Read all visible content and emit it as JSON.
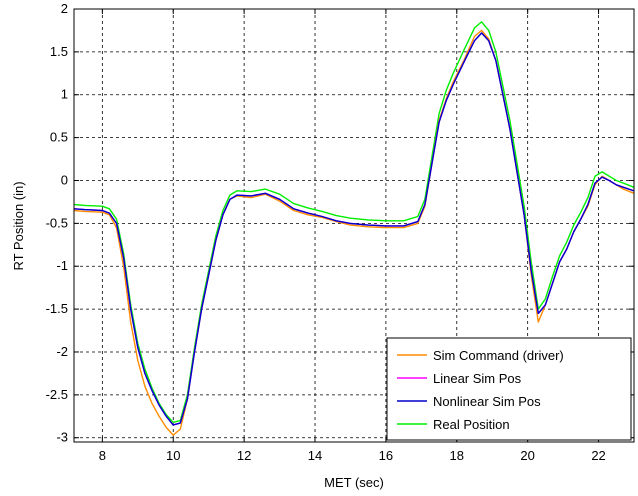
{
  "chart_data": {
    "type": "line",
    "xlabel": "MET (sec)",
    "ylabel": "RT Position (in)",
    "xlim": [
      7.2,
      23
    ],
    "ylim": [
      -3.05,
      2
    ],
    "x_ticks": [
      "8",
      "10",
      "12",
      "14",
      "16",
      "18",
      "20",
      "22"
    ],
    "y_ticks": [
      "2",
      "1.5",
      "1",
      "0.5",
      "0",
      "-0.5",
      "-1",
      "-1.5",
      "-2",
      "-2.5",
      "-3"
    ],
    "grid": true,
    "grid_style": "dashed",
    "legend_position": "bottom-right",
    "series": [
      {
        "name": "Sim Command (driver)",
        "color": "#ff8c00",
        "points": [
          [
            7.2,
            -0.35
          ],
          [
            7.5,
            -0.36
          ],
          [
            8.0,
            -0.37
          ],
          [
            8.2,
            -0.4
          ],
          [
            8.4,
            -0.55
          ],
          [
            8.6,
            -1.0
          ],
          [
            8.8,
            -1.65
          ],
          [
            9.0,
            -2.1
          ],
          [
            9.2,
            -2.4
          ],
          [
            9.4,
            -2.6
          ],
          [
            9.6,
            -2.75
          ],
          [
            9.8,
            -2.88
          ],
          [
            10.0,
            -2.97
          ],
          [
            10.2,
            -2.9
          ],
          [
            10.4,
            -2.55
          ],
          [
            10.6,
            -2.0
          ],
          [
            10.8,
            -1.5
          ],
          [
            11.0,
            -1.1
          ],
          [
            11.2,
            -0.7
          ],
          [
            11.4,
            -0.4
          ],
          [
            11.6,
            -0.22
          ],
          [
            11.8,
            -0.18
          ],
          [
            12.2,
            -0.2
          ],
          [
            12.6,
            -0.16
          ],
          [
            13.0,
            -0.24
          ],
          [
            13.4,
            -0.35
          ],
          [
            13.8,
            -0.4
          ],
          [
            14.2,
            -0.43
          ],
          [
            14.6,
            -0.48
          ],
          [
            15.0,
            -0.52
          ],
          [
            15.5,
            -0.54
          ],
          [
            16.0,
            -0.55
          ],
          [
            16.5,
            -0.55
          ],
          [
            16.9,
            -0.5
          ],
          [
            17.1,
            -0.3
          ],
          [
            17.3,
            0.2
          ],
          [
            17.5,
            0.7
          ],
          [
            17.7,
            0.95
          ],
          [
            17.9,
            1.15
          ],
          [
            18.2,
            1.4
          ],
          [
            18.5,
            1.68
          ],
          [
            18.7,
            1.75
          ],
          [
            18.9,
            1.65
          ],
          [
            19.1,
            1.4
          ],
          [
            19.3,
            1.0
          ],
          [
            19.5,
            0.6
          ],
          [
            19.7,
            0.1
          ],
          [
            19.9,
            -0.4
          ],
          [
            20.1,
            -1.1
          ],
          [
            20.3,
            -1.65
          ],
          [
            20.5,
            -1.45
          ],
          [
            20.7,
            -1.2
          ],
          [
            20.9,
            -0.95
          ],
          [
            21.1,
            -0.8
          ],
          [
            21.3,
            -0.6
          ],
          [
            21.5,
            -0.45
          ],
          [
            21.7,
            -0.3
          ],
          [
            21.9,
            -0.05
          ],
          [
            22.1,
            0.05
          ],
          [
            22.3,
            0.0
          ],
          [
            22.5,
            -0.05
          ],
          [
            22.7,
            -0.1
          ],
          [
            23.0,
            -0.15
          ]
        ]
      },
      {
        "name": "Linear Sim Pos",
        "color": "#ff00ff",
        "points": [
          [
            7.2,
            -0.33
          ],
          [
            7.5,
            -0.34
          ],
          [
            8.0,
            -0.35
          ],
          [
            8.2,
            -0.38
          ],
          [
            8.4,
            -0.5
          ],
          [
            8.6,
            -0.9
          ],
          [
            8.8,
            -1.5
          ],
          [
            9.0,
            -1.95
          ],
          [
            9.2,
            -2.25
          ],
          [
            9.4,
            -2.45
          ],
          [
            9.6,
            -2.62
          ],
          [
            9.8,
            -2.75
          ],
          [
            10.0,
            -2.85
          ],
          [
            10.2,
            -2.83
          ],
          [
            10.4,
            -2.55
          ],
          [
            10.6,
            -2.0
          ],
          [
            10.8,
            -1.5
          ],
          [
            11.0,
            -1.1
          ],
          [
            11.2,
            -0.7
          ],
          [
            11.4,
            -0.4
          ],
          [
            11.6,
            -0.22
          ],
          [
            11.8,
            -0.17
          ],
          [
            12.2,
            -0.18
          ],
          [
            12.6,
            -0.15
          ],
          [
            13.0,
            -0.22
          ],
          [
            13.4,
            -0.33
          ],
          [
            13.8,
            -0.38
          ],
          [
            14.2,
            -0.42
          ],
          [
            14.6,
            -0.47
          ],
          [
            15.0,
            -0.5
          ],
          [
            15.5,
            -0.52
          ],
          [
            16.0,
            -0.53
          ],
          [
            16.5,
            -0.53
          ],
          [
            16.9,
            -0.48
          ],
          [
            17.1,
            -0.28
          ],
          [
            17.3,
            0.2
          ],
          [
            17.5,
            0.68
          ],
          [
            17.7,
            0.93
          ],
          [
            17.9,
            1.12
          ],
          [
            18.2,
            1.38
          ],
          [
            18.5,
            1.63
          ],
          [
            18.7,
            1.72
          ],
          [
            18.9,
            1.63
          ],
          [
            19.1,
            1.4
          ],
          [
            19.3,
            1.0
          ],
          [
            19.5,
            0.6
          ],
          [
            19.7,
            0.1
          ],
          [
            19.9,
            -0.4
          ],
          [
            20.1,
            -1.05
          ],
          [
            20.3,
            -1.55
          ],
          [
            20.5,
            -1.45
          ],
          [
            20.7,
            -1.2
          ],
          [
            20.9,
            -0.95
          ],
          [
            21.1,
            -0.8
          ],
          [
            21.3,
            -0.6
          ],
          [
            21.5,
            -0.45
          ],
          [
            21.7,
            -0.28
          ],
          [
            21.9,
            -0.03
          ],
          [
            22.1,
            0.04
          ],
          [
            22.3,
            0.0
          ],
          [
            22.5,
            -0.05
          ],
          [
            22.7,
            -0.08
          ],
          [
            23.0,
            -0.12
          ]
        ]
      },
      {
        "name": "Nonlinear Sim Pos",
        "color": "#0000cc",
        "points": [
          [
            7.2,
            -0.33
          ],
          [
            7.5,
            -0.34
          ],
          [
            8.0,
            -0.35
          ],
          [
            8.2,
            -0.38
          ],
          [
            8.4,
            -0.5
          ],
          [
            8.6,
            -0.9
          ],
          [
            8.8,
            -1.5
          ],
          [
            9.0,
            -1.95
          ],
          [
            9.2,
            -2.25
          ],
          [
            9.4,
            -2.45
          ],
          [
            9.6,
            -2.62
          ],
          [
            9.8,
            -2.75
          ],
          [
            10.0,
            -2.85
          ],
          [
            10.2,
            -2.83
          ],
          [
            10.4,
            -2.55
          ],
          [
            10.6,
            -2.0
          ],
          [
            10.8,
            -1.5
          ],
          [
            11.0,
            -1.1
          ],
          [
            11.2,
            -0.7
          ],
          [
            11.4,
            -0.4
          ],
          [
            11.6,
            -0.22
          ],
          [
            11.8,
            -0.17
          ],
          [
            12.2,
            -0.18
          ],
          [
            12.6,
            -0.15
          ],
          [
            13.0,
            -0.22
          ],
          [
            13.4,
            -0.33
          ],
          [
            13.8,
            -0.38
          ],
          [
            14.2,
            -0.42
          ],
          [
            14.6,
            -0.47
          ],
          [
            15.0,
            -0.5
          ],
          [
            15.5,
            -0.52
          ],
          [
            16.0,
            -0.53
          ],
          [
            16.5,
            -0.53
          ],
          [
            16.9,
            -0.48
          ],
          [
            17.1,
            -0.28
          ],
          [
            17.3,
            0.2
          ],
          [
            17.5,
            0.68
          ],
          [
            17.7,
            0.93
          ],
          [
            17.9,
            1.12
          ],
          [
            18.2,
            1.38
          ],
          [
            18.5,
            1.63
          ],
          [
            18.7,
            1.72
          ],
          [
            18.9,
            1.63
          ],
          [
            19.1,
            1.4
          ],
          [
            19.3,
            1.0
          ],
          [
            19.5,
            0.6
          ],
          [
            19.7,
            0.1
          ],
          [
            19.9,
            -0.4
          ],
          [
            20.1,
            -1.05
          ],
          [
            20.3,
            -1.55
          ],
          [
            20.5,
            -1.45
          ],
          [
            20.7,
            -1.2
          ],
          [
            20.9,
            -0.95
          ],
          [
            21.1,
            -0.8
          ],
          [
            21.3,
            -0.6
          ],
          [
            21.5,
            -0.45
          ],
          [
            21.7,
            -0.28
          ],
          [
            21.9,
            -0.03
          ],
          [
            22.1,
            0.04
          ],
          [
            22.3,
            0.0
          ],
          [
            22.5,
            -0.05
          ],
          [
            22.7,
            -0.08
          ],
          [
            23.0,
            -0.12
          ]
        ]
      },
      {
        "name": "Real Position",
        "color": "#00ee00",
        "points": [
          [
            7.2,
            -0.28
          ],
          [
            7.5,
            -0.29
          ],
          [
            8.0,
            -0.3
          ],
          [
            8.2,
            -0.33
          ],
          [
            8.4,
            -0.45
          ],
          [
            8.6,
            -0.85
          ],
          [
            8.8,
            -1.45
          ],
          [
            9.0,
            -1.9
          ],
          [
            9.2,
            -2.2
          ],
          [
            9.4,
            -2.42
          ],
          [
            9.6,
            -2.6
          ],
          [
            9.8,
            -2.73
          ],
          [
            10.0,
            -2.82
          ],
          [
            10.2,
            -2.8
          ],
          [
            10.4,
            -2.5
          ],
          [
            10.6,
            -1.95
          ],
          [
            10.8,
            -1.45
          ],
          [
            11.0,
            -1.05
          ],
          [
            11.2,
            -0.65
          ],
          [
            11.4,
            -0.35
          ],
          [
            11.6,
            -0.17
          ],
          [
            11.8,
            -0.12
          ],
          [
            12.2,
            -0.13
          ],
          [
            12.6,
            -0.1
          ],
          [
            13.0,
            -0.16
          ],
          [
            13.4,
            -0.27
          ],
          [
            13.8,
            -0.32
          ],
          [
            14.2,
            -0.36
          ],
          [
            14.6,
            -0.41
          ],
          [
            15.0,
            -0.44
          ],
          [
            15.5,
            -0.46
          ],
          [
            16.0,
            -0.47
          ],
          [
            16.5,
            -0.47
          ],
          [
            16.9,
            -0.42
          ],
          [
            17.1,
            -0.22
          ],
          [
            17.3,
            0.28
          ],
          [
            17.5,
            0.78
          ],
          [
            17.7,
            1.05
          ],
          [
            17.9,
            1.25
          ],
          [
            18.2,
            1.52
          ],
          [
            18.5,
            1.78
          ],
          [
            18.7,
            1.85
          ],
          [
            18.9,
            1.75
          ],
          [
            19.1,
            1.5
          ],
          [
            19.3,
            1.1
          ],
          [
            19.5,
            0.7
          ],
          [
            19.7,
            0.2
          ],
          [
            19.9,
            -0.3
          ],
          [
            20.1,
            -0.95
          ],
          [
            20.3,
            -1.5
          ],
          [
            20.5,
            -1.38
          ],
          [
            20.7,
            -1.12
          ],
          [
            20.9,
            -0.88
          ],
          [
            21.1,
            -0.72
          ],
          [
            21.3,
            -0.52
          ],
          [
            21.5,
            -0.37
          ],
          [
            21.7,
            -0.2
          ],
          [
            21.9,
            0.05
          ],
          [
            22.1,
            0.1
          ],
          [
            22.3,
            0.05
          ],
          [
            22.5,
            0.0
          ],
          [
            22.7,
            -0.03
          ],
          [
            23.0,
            -0.08
          ]
        ]
      }
    ]
  }
}
